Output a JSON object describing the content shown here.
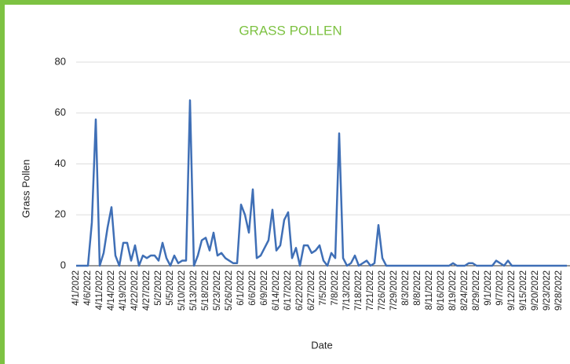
{
  "chart_data": {
    "type": "line",
    "title": "GRASS POLLEN",
    "x_label": "Date",
    "y_label": "Grass Pollen",
    "categories": [
      "4/1/2022",
      null,
      null,
      "4/6/2022",
      null,
      null,
      "4/11/2022",
      null,
      null,
      "4/14/2022",
      null,
      null,
      "4/19/2022",
      null,
      null,
      "4/22/2022",
      null,
      null,
      "4/27/2022",
      null,
      null,
      "5/2/2022",
      null,
      null,
      "5/5/2022",
      null,
      null,
      "5/10/2022",
      null,
      null,
      "5/13/2022",
      null,
      null,
      "5/18/2022",
      null,
      null,
      "5/23/2022",
      null,
      null,
      "5/26/2022",
      null,
      null,
      "6/1/2022",
      null,
      null,
      "6/6/2022",
      null,
      null,
      "6/9/2022",
      null,
      null,
      "6/14/2022",
      null,
      null,
      "6/17/2022",
      null,
      null,
      "6/22/2022",
      null,
      null,
      "6/27/2022",
      null,
      null,
      "7/5/2022",
      null,
      null,
      "7/8/2022",
      null,
      null,
      "7/13/2022",
      null,
      null,
      "7/18/2022",
      null,
      null,
      "7/21/2022",
      null,
      null,
      "7/26/2022",
      null,
      null,
      "7/29/2022",
      null,
      null,
      "8/3/2022",
      null,
      null,
      "8/8/2022",
      null,
      null,
      "8/11/2022",
      null,
      null,
      "8/16/2022",
      null,
      null,
      "8/19/2022",
      null,
      null,
      "8/24/2022",
      null,
      null,
      "8/29/2022",
      null,
      null,
      "9/1/2022",
      null,
      null,
      "9/7/2022",
      null,
      null,
      "9/12/2022",
      null,
      null,
      "9/15/2022",
      null,
      null,
      "9/20/2022",
      null,
      null,
      "9/23/2022",
      null,
      null,
      "9/28/2022",
      null,
      null
    ],
    "series": [
      {
        "name": "Grass Pollen",
        "color": "#3f6fb6",
        "values": [
          0,
          0,
          0,
          0,
          17,
          57.5,
          0,
          5,
          15,
          23,
          4,
          0,
          9,
          9,
          2,
          8,
          0,
          4,
          3,
          4,
          4,
          2,
          9,
          3,
          0,
          4,
          1,
          2,
          2,
          65,
          0,
          4,
          10,
          11,
          6,
          13,
          4,
          5,
          3,
          2,
          1,
          1,
          24,
          20,
          13,
          30,
          3,
          4,
          7,
          10,
          22,
          6,
          8,
          18,
          21,
          3,
          7,
          0,
          8,
          8,
          5,
          6,
          8,
          2,
          0,
          5,
          3,
          52,
          3,
          0,
          1,
          4,
          0,
          1,
          2,
          0,
          1,
          16,
          3,
          0,
          0,
          0,
          0,
          0,
          0,
          0,
          0,
          0,
          0,
          0,
          0,
          0,
          0,
          0,
          0,
          0,
          1,
          0,
          0,
          0,
          1,
          1,
          0,
          0,
          0,
          0,
          0,
          2,
          1,
          0,
          2,
          0,
          0,
          0,
          0,
          0,
          0,
          0,
          0,
          0,
          0,
          0,
          0,
          0,
          0,
          0
        ]
      }
    ],
    "ylim": [
      0,
      80
    ],
    "yticks": [
      0,
      20,
      40,
      60,
      80
    ],
    "grid": true
  }
}
